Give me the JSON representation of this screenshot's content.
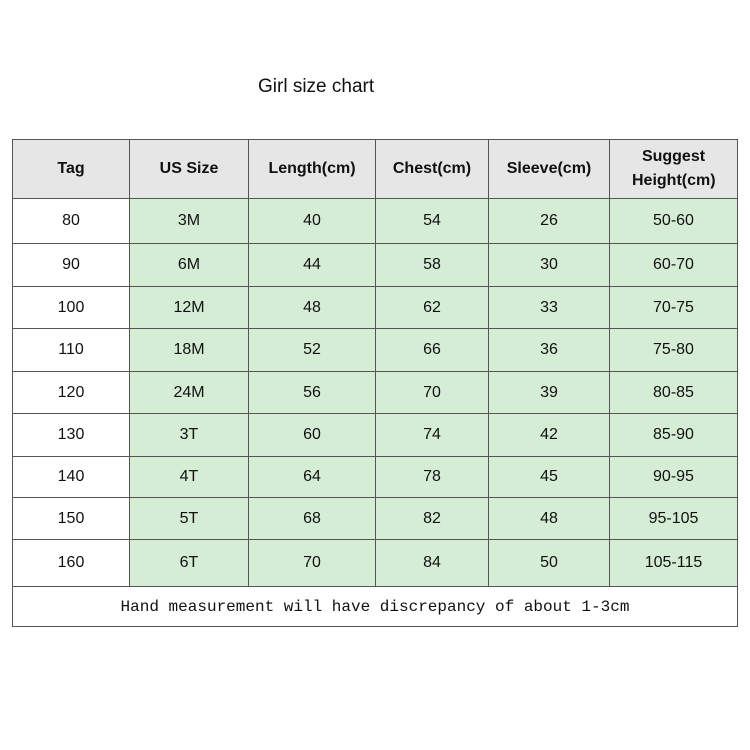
{
  "title": "Girl size chart",
  "headers": [
    "Tag",
    "US Size",
    "Length(cm)",
    "Chest(cm)",
    "Sleeve(cm)",
    "Suggest Height(cm)"
  ],
  "rows": [
    [
      "80",
      "3M",
      "40",
      "54",
      "26",
      "50-60"
    ],
    [
      "90",
      "6M",
      "44",
      "58",
      "30",
      "60-70"
    ],
    [
      "100",
      "12M",
      "48",
      "62",
      "33",
      "70-75"
    ],
    [
      "110",
      "18M",
      "52",
      "66",
      "36",
      "75-80"
    ],
    [
      "120",
      "24M",
      "56",
      "70",
      "39",
      "80-85"
    ],
    [
      "130",
      "3T",
      "60",
      "74",
      "42",
      "85-90"
    ],
    [
      "140",
      "4T",
      "64",
      "78",
      "45",
      "90-95"
    ],
    [
      "150",
      "5T",
      "68",
      "82",
      "48",
      "95-105"
    ],
    [
      "160",
      "6T",
      "70",
      "84",
      "50",
      "105-115"
    ]
  ],
  "note": "Hand measurement will have discrepancy of about 1-3cm",
  "colors": {
    "header_bg": "#e6e6e6",
    "cell_bg": "#d5ecd5",
    "border": "#555555"
  }
}
